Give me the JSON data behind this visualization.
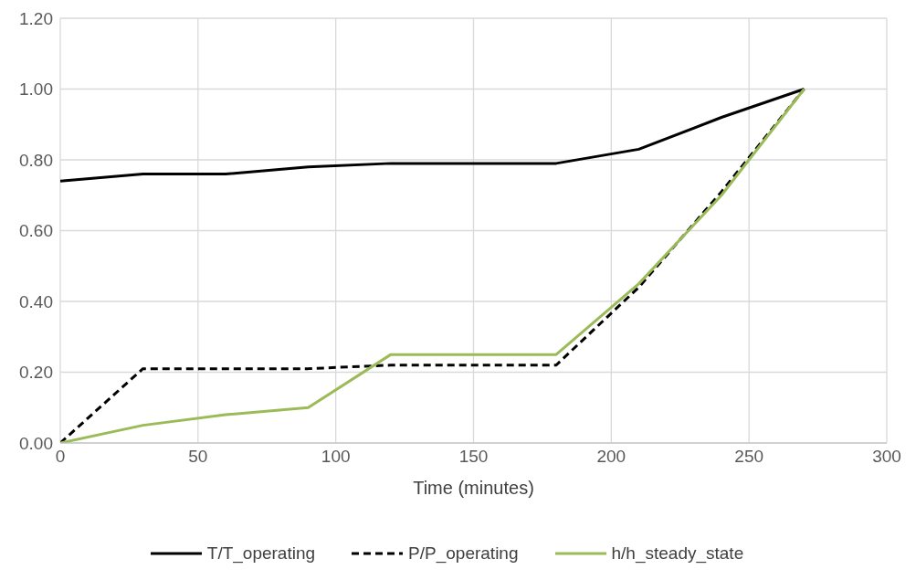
{
  "chart_data": {
    "type": "line",
    "xlabel": "Time (minutes)",
    "x": [
      0,
      30,
      60,
      90,
      120,
      180,
      210,
      240,
      270
    ],
    "series": [
      {
        "name": "T/T_operating",
        "color": "#000000",
        "line_style": "solid",
        "values": [
          0.74,
          0.76,
          0.76,
          0.78,
          0.79,
          0.79,
          0.83,
          0.92,
          1.0
        ]
      },
      {
        "name": "P/P_operating",
        "color": "#000000",
        "line_style": "dashed",
        "values": [
          0,
          0.21,
          0.21,
          0.21,
          0.22,
          0.22,
          0.44,
          0.71,
          1.0
        ]
      },
      {
        "name": "h/h_steady_state",
        "color": "#9bbb59",
        "line_style": "solid",
        "values": [
          0,
          0.05,
          0.08,
          0.1,
          0.25,
          0.25,
          0.45,
          0.7,
          1.0
        ]
      }
    ],
    "xlim": [
      0,
      300
    ],
    "xticks": [
      0,
      50,
      100,
      150,
      200,
      250,
      300
    ],
    "ylim": [
      0,
      1.2
    ],
    "yticks": [
      {
        "value": 0,
        "label": "0.00"
      },
      {
        "value": 0.2,
        "label": "0.20"
      },
      {
        "value": 0.4,
        "label": "0.40"
      },
      {
        "value": 0.6,
        "label": "0.60"
      },
      {
        "value": 0.8,
        "label": "0.80"
      },
      {
        "value": 1.0,
        "label": "1.00"
      },
      {
        "value": 1.2,
        "label": "1.20"
      }
    ],
    "grid": true,
    "legend": "bottom",
    "marker": "none"
  }
}
